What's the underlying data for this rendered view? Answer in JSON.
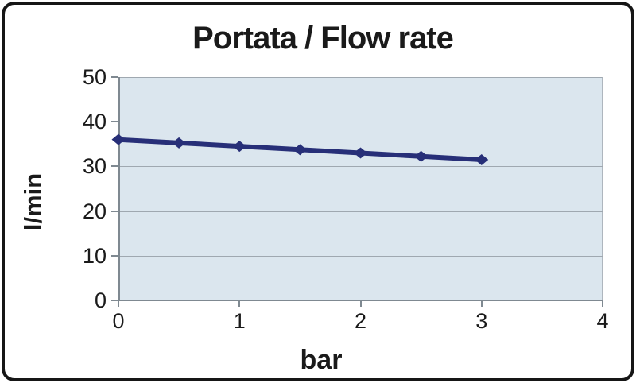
{
  "chart_data": {
    "type": "line",
    "title": "Portata / Flow rate",
    "xlabel": "bar",
    "ylabel": "l/min",
    "series": [
      {
        "name": "Flow rate",
        "x": [
          0,
          0.5,
          1,
          1.5,
          2,
          2.5,
          3
        ],
        "values": [
          36,
          35.25,
          34.5,
          33.75,
          33,
          32.25,
          31.5
        ]
      }
    ],
    "xlim": [
      0,
      4
    ],
    "ylim": [
      0,
      50
    ],
    "x_ticks": [
      "0",
      "1",
      "2",
      "3",
      "4"
    ],
    "y_ticks": [
      "0",
      "10",
      "20",
      "30",
      "40",
      "50"
    ],
    "grid": "horizontal-on",
    "legend_position": "none",
    "line_color": "#272f78",
    "marker": "diamond",
    "plot_background": "#dbe6ee",
    "gridline_color": "#9fa8b0",
    "frame_border_color": "#161616"
  }
}
